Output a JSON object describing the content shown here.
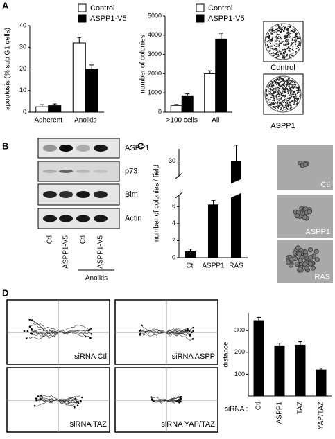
{
  "panels": [
    "A",
    "B",
    "C",
    "D"
  ],
  "chart_data": [
    {
      "type": "bar",
      "ylabel": "apoptosis (% sub G1 cells)",
      "categories": [
        "Adherent",
        "Anoikis"
      ],
      "series": [
        {
          "name": "Control",
          "color": "#ffffff",
          "values": [
            2.5,
            32
          ],
          "errors": [
            1,
            2.5
          ]
        },
        {
          "name": "ASPP1-V5",
          "color": "#000000",
          "values": [
            3,
            20
          ],
          "errors": [
            0.8,
            1.8
          ]
        }
      ],
      "ylim": [
        0,
        40
      ],
      "yticks": [
        0,
        10,
        20,
        30,
        40
      ]
    },
    {
      "type": "bar",
      "ylabel": "number of colonies",
      "categories": [
        ">100 cells",
        "All"
      ],
      "series": [
        {
          "name": "Control",
          "color": "#ffffff",
          "values": [
            350,
            2000
          ],
          "errors": [
            50,
            150
          ]
        },
        {
          "name": "ASPP1-V5",
          "color": "#000000",
          "values": [
            850,
            3800
          ],
          "errors": [
            100,
            300
          ]
        }
      ],
      "ylim": [
        0,
        5000
      ],
      "yticks": [
        0,
        1000,
        2000,
        3000,
        4000,
        5000
      ]
    },
    {
      "type": "bar",
      "ylabel": "number of colonies / field",
      "categories": [
        "Ctl",
        "ASPP1",
        "RAS"
      ],
      "values": [
        0.7,
        6.2,
        30
      ],
      "errors": [
        0.3,
        0.5,
        1.3
      ],
      "color": "#000000",
      "ylim": [
        0,
        31
      ],
      "ybreak": [
        7,
        29
      ],
      "yticks": [
        0,
        2,
        4,
        6,
        30
      ]
    },
    {
      "type": "bar",
      "ylabel": "distance",
      "xlabel": "siRNA :",
      "categories": [
        "Ctl",
        "ASPP1",
        "TAZ",
        "YAP/TAZ"
      ],
      "values": [
        345,
        230,
        233,
        120
      ],
      "errors": [
        15,
        12,
        15,
        8
      ],
      "color": "#000000",
      "ylim": [
        0,
        380
      ],
      "yticks": [
        100,
        200,
        300
      ],
      "rotate_categories": true
    }
  ],
  "plates": [
    "Control",
    "ASPP1"
  ],
  "blot": {
    "proteins": [
      "ASPP1",
      "p73",
      "Bim",
      "Actin"
    ],
    "lanes": [
      "Ctl",
      "ASPP1-V5",
      "Ctl",
      "ASPP1-V5"
    ],
    "treatment": "Anoikis"
  },
  "micrographs": [
    "Ctl",
    "ASPP1",
    "RAS"
  ],
  "tracks": [
    "siRNA Ctl",
    "siRNA ASPP",
    "siRNA TAZ",
    "siRNA YAP/TAZ"
  ]
}
